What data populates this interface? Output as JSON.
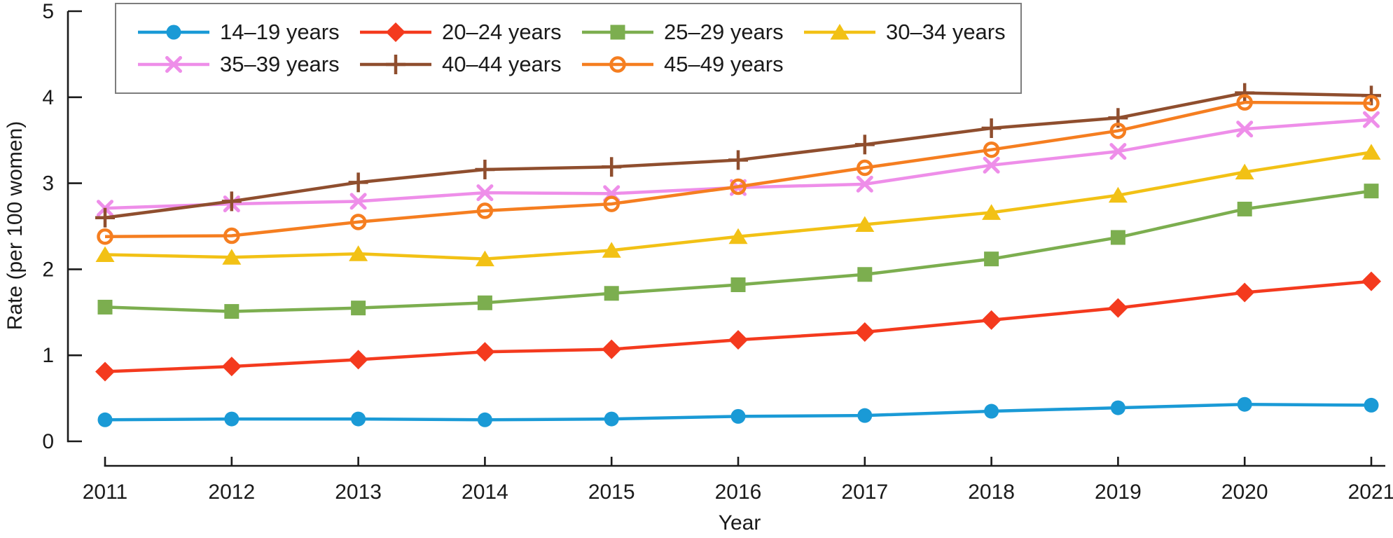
{
  "chart_data": {
    "type": "line",
    "x": [
      2011,
      2012,
      2013,
      2014,
      2015,
      2016,
      2017,
      2018,
      2019,
      2020,
      2021
    ],
    "xlabel": "Year",
    "ylabel": "Rate (per 100 women)",
    "ylim": [
      0,
      5
    ],
    "yticks": [
      0,
      1,
      2,
      3,
      4,
      5
    ],
    "grid": false,
    "legend_position": "top-left, boxed, 2 rows",
    "axis_color": "#1a1a1a",
    "legend_border_color": "#7d7d7d",
    "series": [
      {
        "name": "14–19 years",
        "color": "#1a9ad6",
        "marker": "circle",
        "values": [
          0.25,
          0.26,
          0.26,
          0.25,
          0.26,
          0.29,
          0.3,
          0.35,
          0.39,
          0.43,
          0.42
        ]
      },
      {
        "name": "20–24 years",
        "color": "#f43a1e",
        "marker": "diamond",
        "values": [
          0.81,
          0.87,
          0.95,
          1.04,
          1.07,
          1.18,
          1.27,
          1.41,
          1.55,
          1.73,
          1.86
        ]
      },
      {
        "name": "25–29 years",
        "color": "#7cae4f",
        "marker": "square",
        "values": [
          1.56,
          1.51,
          1.55,
          1.61,
          1.72,
          1.82,
          1.94,
          2.12,
          2.37,
          2.7,
          2.91
        ]
      },
      {
        "name": "30–34 years",
        "color": "#f2c115",
        "marker": "triangle",
        "values": [
          2.17,
          2.14,
          2.18,
          2.12,
          2.22,
          2.38,
          2.52,
          2.66,
          2.86,
          3.13,
          3.36
        ]
      },
      {
        "name": "35–39 years",
        "color": "#ee8ee9",
        "marker": "x",
        "values": [
          2.71,
          2.76,
          2.79,
          2.89,
          2.88,
          2.95,
          2.99,
          3.21,
          3.37,
          3.63,
          3.74
        ]
      },
      {
        "name": "40–44 years",
        "color": "#8f4e2e",
        "marker": "plus",
        "values": [
          2.6,
          2.79,
          3.01,
          3.16,
          3.19,
          3.27,
          3.45,
          3.64,
          3.76,
          4.05,
          4.02
        ]
      },
      {
        "name": "45–49 years",
        "color": "#f57e20",
        "marker": "circle_open",
        "values": [
          2.38,
          2.39,
          2.55,
          2.68,
          2.76,
          2.96,
          3.18,
          3.39,
          3.61,
          3.94,
          3.93
        ]
      }
    ]
  }
}
